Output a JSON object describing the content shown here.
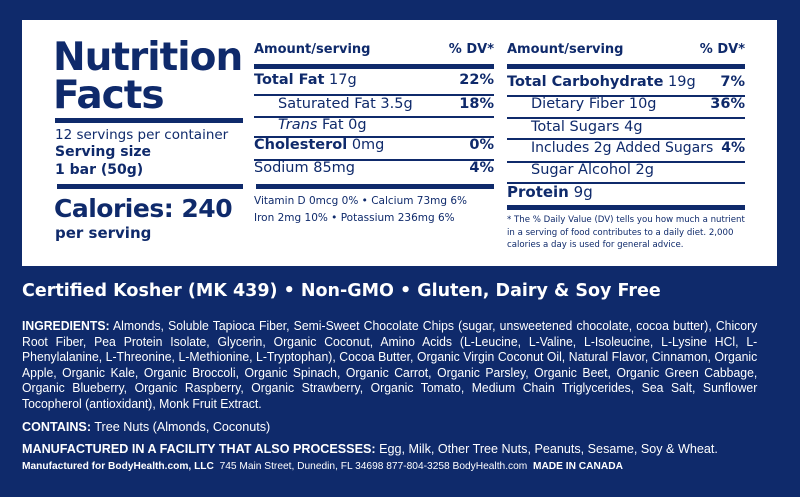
{
  "title_line1": "Nutrition",
  "title_line2": "Facts",
  "servings": "12 servings per container",
  "serving_size_label": "Serving size",
  "serving_size": "1 bar (50g)",
  "calories": "Calories: 240",
  "per_serving": "per serving",
  "left_table": {
    "header_amount": "Amount/serving",
    "header_dv": "% DV*",
    "rows": [
      {
        "name": "Total Fat",
        "amount": "17g",
        "dv": "22%"
      },
      {
        "name": "Saturated Fat",
        "amount": "3.5g",
        "dv": "18%"
      },
      {
        "name": "Trans",
        "amount": "Fat 0g",
        "dv": ""
      },
      {
        "name": "Cholesterol",
        "amount": "0mg",
        "dv": "0%"
      },
      {
        "name": "Sodium",
        "amount": "85mg",
        "dv": "4%"
      }
    ],
    "vitamins_line1": "Vitamin D 0mcg 0%  •  Calcium 73mg 6%",
    "vitamins_line2": "Iron 2mg 10%  •  Potassium 236mg 6%"
  },
  "right_table": {
    "header_amount": "Amount/serving",
    "header_dv": "% DV*",
    "rows": [
      {
        "name": "Total Carbohydrate",
        "amount": "19g",
        "dv": "7%"
      },
      {
        "name": "Dietary Fiber",
        "amount": "10g",
        "dv": "36%"
      },
      {
        "name": "Total Sugars",
        "amount": "4g",
        "dv": ""
      },
      {
        "name": "Includes 2g Added Sugars",
        "amount": "",
        "dv": "4%"
      },
      {
        "name": "Sugar Alcohol",
        "amount": "2g",
        "dv": ""
      },
      {
        "name": "Protein",
        "amount": "9g",
        "dv": ""
      }
    ],
    "footnote": "* The % Daily Value (DV) tells you how much a nutrient in a serving of food contributes to a daily diet. 2,000 calories a day is used for general advice."
  },
  "certifications": "Certified Kosher (MK 439) • Non-GMO • Gluten, Dairy & Soy Free",
  "ingredients_label": "INGREDIENTS:",
  "ingredients": "Almonds, Soluble Tapioca Fiber, Semi-Sweet Chocolate Chips (sugar, unsweetened chocolate, cocoa butter), Chicory Root Fiber, Pea Protein Isolate, Glycerin, Organic Coconut, Amino Acids (L-Leucine, L-Valine, L-Isoleucine, L-Lysine HCl, L-Phenylalanine, L-Threonine, L-Methionine, L-Tryptophan), Cocoa Butter, Organic Virgin Coconut Oil, Natural Flavor, Cinnamon, Organic Apple, Organic Kale, Organic Broccoli, Organic Spinach, Organic Carrot, Organic Parsley, Organic Beet, Organic Green Cabbage, Organic Blueberry, Organic Raspberry, Organic Strawberry, Organic Tomato, Medium Chain Triglycerides, Sea Salt, Sunflower Tocopherol (antioxidant), Monk Fruit Extract.",
  "contains_label": "CONTAINS:",
  "contains": "Tree Nuts (Almonds, Coconuts)",
  "facility_label": "MANUFACTURED IN A FACILITY THAT ALSO PROCESSES:",
  "facility": "Egg, Milk, Other Tree Nuts, Peanuts, Sesame, Soy & Wheat.",
  "footer_bold": "Manufactured for BodyHealth.com, LLC",
  "footer_address": "745 Main Street, Dunedin, FL 34698 877-804-3258   BodyHealth.com",
  "footer_origin": "MADE IN CANADA"
}
